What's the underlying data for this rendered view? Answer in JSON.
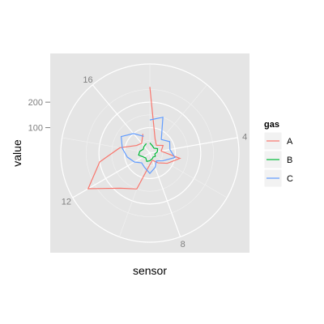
{
  "chart_data": {
    "type": "line",
    "coord": "polar",
    "xlabel": "sensor",
    "ylabel": "value",
    "theta_ticks": [
      "4",
      "8",
      "12",
      "16"
    ],
    "theta_range": [
      0,
      18
    ],
    "r_ticks": [
      "100",
      "200"
    ],
    "r_range": [
      0,
      350
    ],
    "grid": true,
    "legend": {
      "title": "gas",
      "position": "right"
    },
    "x": [
      0,
      1,
      2,
      3,
      4,
      5,
      6,
      7,
      8,
      9,
      10,
      11,
      12,
      13,
      14,
      15,
      16,
      17
    ],
    "series": [
      {
        "name": "A",
        "color": "#F8766D",
        "values": [
          260,
          60,
          40,
          60,
          45,
          120,
          80,
          50,
          30,
          45,
          150,
          180,
          280,
          200,
          120,
          60,
          50,
          80
        ]
      },
      {
        "name": "B",
        "color": "#00BA38",
        "values": [
          40,
          30,
          25,
          35,
          30,
          20,
          25,
          20,
          25,
          30,
          35,
          25,
          30,
          45,
          40,
          30,
          35,
          40
        ]
      },
      {
        "name": "C",
        "color": "#619CFF",
        "values": [
          130,
          150,
          70,
          90,
          80,
          100,
          60,
          40,
          60,
          80,
          60,
          50,
          70,
          90,
          110,
          130,
          100,
          70
        ]
      }
    ]
  }
}
